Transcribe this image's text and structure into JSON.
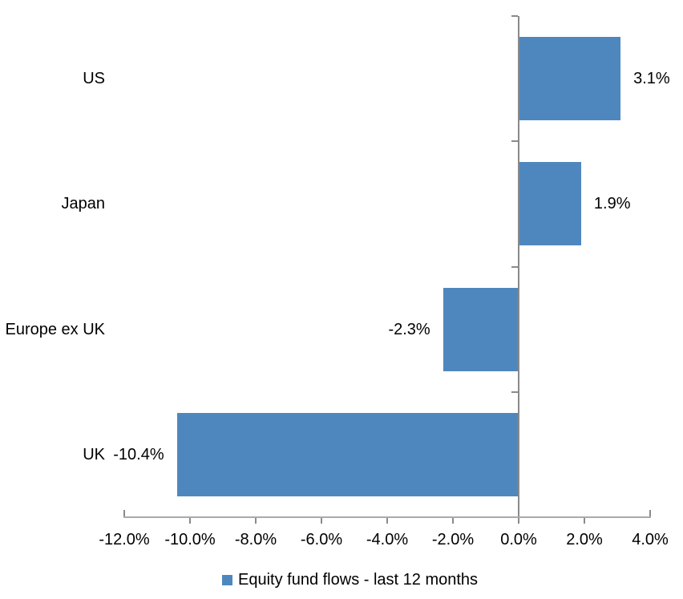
{
  "chart_data": {
    "type": "bar",
    "orientation": "horizontal",
    "title": "",
    "categories": [
      "US",
      "Japan",
      "Europe ex UK",
      "UK"
    ],
    "series": [
      {
        "name": "Equity fund flows - last 12 months",
        "values": [
          3.1,
          1.9,
          -2.3,
          -10.4
        ],
        "value_labels": [
          "3.1%",
          "1.9%",
          "-2.3%",
          "-10.4%"
        ]
      }
    ],
    "xlabel": "",
    "ylabel": "",
    "xlim": [
      -12,
      4
    ],
    "x_ticks": [
      -12,
      -10,
      -8,
      -6,
      -4,
      -2,
      0,
      2,
      4
    ],
    "x_tick_labels": [
      "-12.0%",
      "-10.0%",
      "-8.0%",
      "-6.0%",
      "-4.0%",
      "-2.0%",
      "0.0%",
      "2.0%",
      "4.0%"
    ],
    "grid": false,
    "legend": {
      "position": "bottom",
      "label": "Equity fund flows - last 12 months"
    },
    "colors": {
      "bar": "#4E87BE",
      "axis_line": "#AAAAAA",
      "zero_line": "#8A8A8A",
      "tick": "#8A8A8A",
      "text": "#000000",
      "background": "#FFFFFF"
    }
  }
}
